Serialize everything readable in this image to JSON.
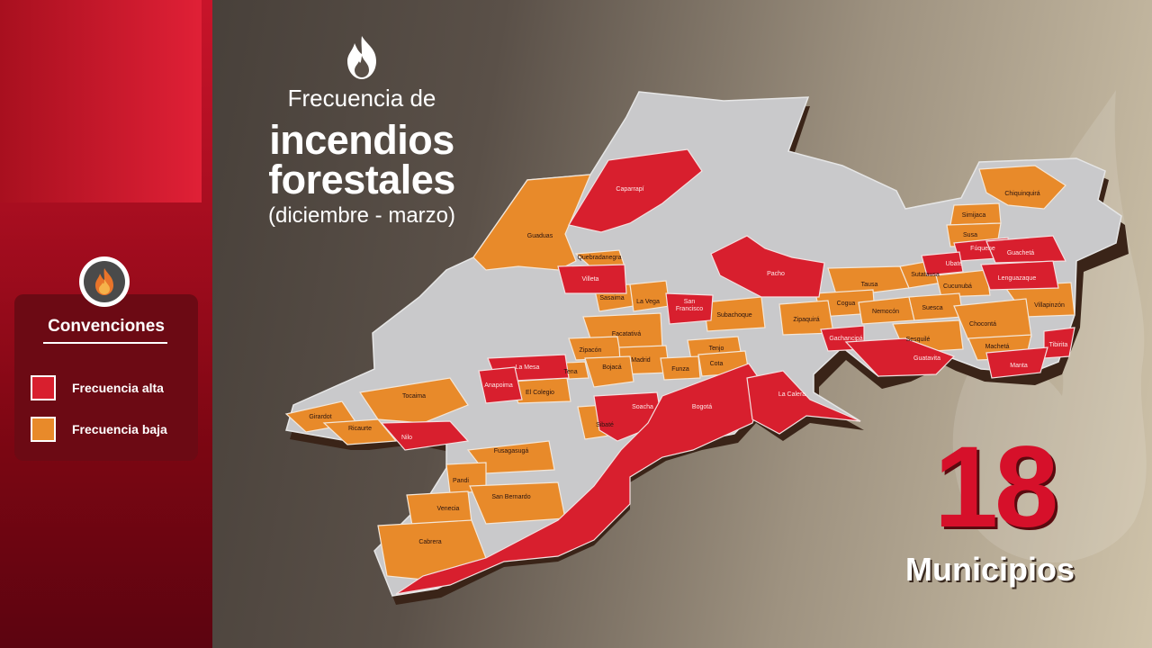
{
  "title": {
    "line1": "Frecuencia de",
    "line2": "incendios",
    "line3": "forestales",
    "line4": "(diciembre - marzo)"
  },
  "legend": {
    "title": "Convenciones",
    "items": [
      {
        "label": "Frecuencia alta",
        "color": "#d81f2e"
      },
      {
        "label": "Frecuencia baja",
        "color": "#e88a2a"
      }
    ]
  },
  "count": {
    "number": "18",
    "label": "Municipios"
  },
  "colors": {
    "alta": "#d81f2e",
    "baja": "#e88a2a",
    "neutral": "#c9c9cb",
    "sidebar": "#b5101f"
  },
  "municipalities": {
    "alta": [
      "Caparrapí",
      "Villeta",
      "San Francisco",
      "Pacho",
      "Fúquene",
      "Ubaté",
      "Guachetá",
      "Lenguazaque",
      "Gachancipá",
      "Guatavita",
      "Tibirita",
      "Manta",
      "La Mesa",
      "Anapoima",
      "Nilo",
      "Soacha",
      "Bogotá",
      "La Calera"
    ],
    "baja": [
      "Guaduas",
      "Quebradanegra",
      "Sasaima",
      "La Vega",
      "Chiquinquirá",
      "Simijaca",
      "Susa",
      "Sutatausa",
      "Tausa",
      "Cucunubá",
      "Cogua",
      "Nemocón",
      "Suesca",
      "Villapinzón",
      "Chocontá",
      "Machetá",
      "Sesquilé",
      "Zipaquirá",
      "Subachoque",
      "Facatativá",
      "Zipacón",
      "Madrid",
      "Tenjo",
      "Bojacá",
      "Funza",
      "Cota",
      "Tena",
      "El Colegio",
      "Tocaima",
      "Girardot",
      "Ricaurte",
      "Sibaté",
      "Fusagasugá",
      "Pandi",
      "San Bernardo",
      "Venecia",
      "Cabrera"
    ]
  }
}
